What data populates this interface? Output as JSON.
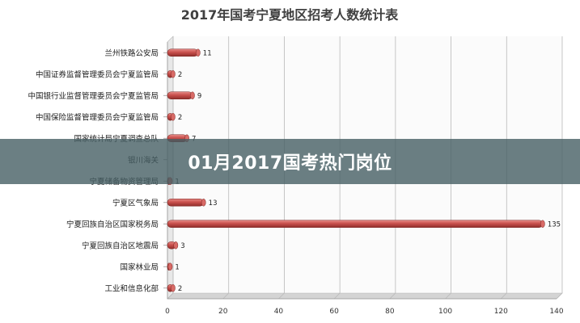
{
  "banner": {
    "text": "01月2017国考热门岗位"
  },
  "chart_data": {
    "type": "bar",
    "orientation": "horizontal",
    "title": "2017年国考宁夏地区招考人数统计表",
    "categories": [
      "兰州铁路公安局",
      "中国证券监督管理委员会宁夏监管局",
      "中国银行业监督管理委员会宁夏监管局",
      "中国保险监督管理委员会宁夏监管局",
      "国家统计局宁夏调查总队",
      "银川海关",
      "宁夏储备物资管理局",
      "宁夏区气象局",
      "宁夏回族自治区国家税务局",
      "宁夏回族自治区地震局",
      "国家林业局",
      "工业和信息化部"
    ],
    "values": [
      11,
      2,
      9,
      2,
      7,
      null,
      1,
      13,
      135,
      3,
      1,
      2
    ],
    "xlim": [
      0,
      140
    ],
    "xticks": [
      0,
      20,
      40,
      60,
      80,
      100,
      120,
      140
    ],
    "grid": "vertical",
    "bar_color": "#c9504d"
  }
}
